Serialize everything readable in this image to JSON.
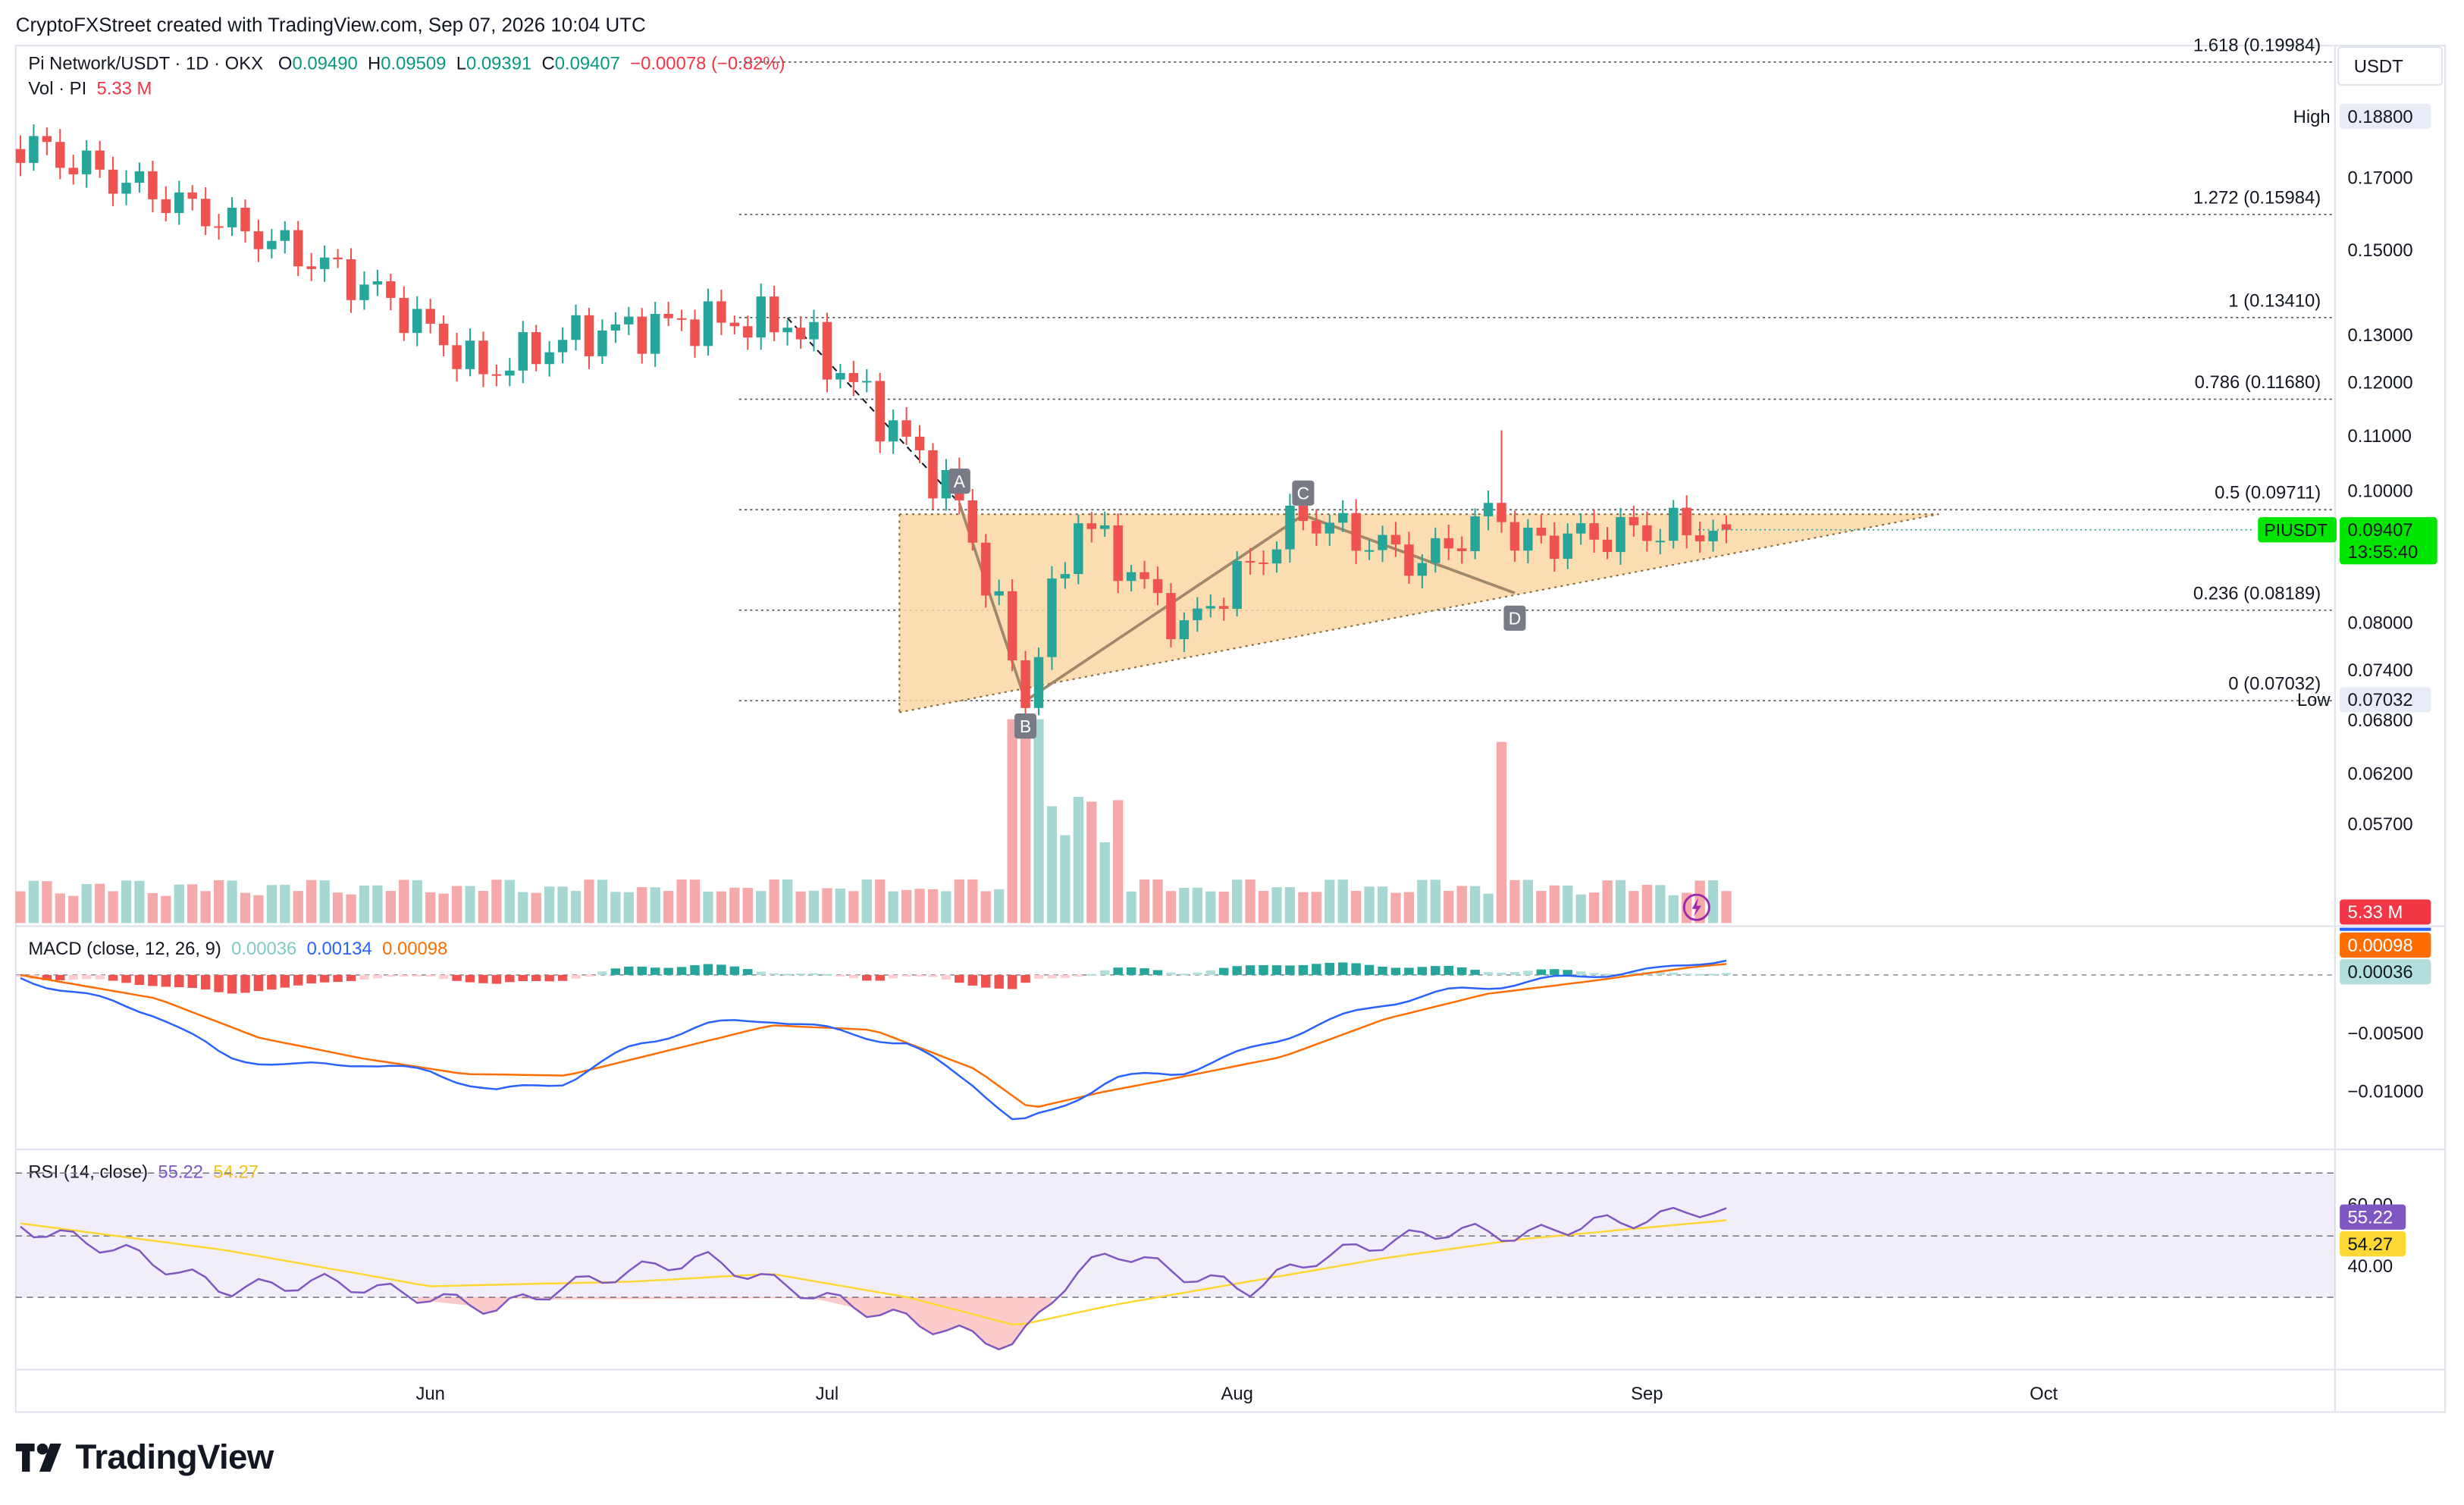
{
  "header": {
    "attribution": "CryptoFXStreet created with TradingView.com, Sep 07, 2026 10:04 UTC"
  },
  "symbol": {
    "title": "Pi Network/USDT · 1D · OKX",
    "open_label": "O",
    "open": "0.09490",
    "high_label": "H",
    "high": "0.09509",
    "low_label": "L",
    "low": "0.09391",
    "close_label": "C",
    "close": "0.09407",
    "change": "−0.00078 (−0.82%)",
    "vol_label": "Vol · PI",
    "vol_value": "5.33 M"
  },
  "price_axis": {
    "currency": "USDT",
    "ticks": [
      "0.17000",
      "0.15000",
      "0.13000",
      "0.12000",
      "0.11000",
      "0.10000",
      "0.08000",
      "0.07400",
      "0.06800",
      "0.06200",
      "0.05700"
    ],
    "high_label": "High",
    "high_value": "0.18800",
    "low_label": "Low",
    "low_value": "0.07032",
    "last_symbol": "PIUSDT",
    "last_price": "0.09407",
    "countdown": "13:55:40",
    "volume_badge": "5.33 M"
  },
  "fib_levels": [
    {
      "label": "1.618 (0.19984)",
      "value": 0.19984
    },
    {
      "label": "1.272 (0.15984)",
      "value": 0.15984
    },
    {
      "label": "1 (0.13410)",
      "value": 0.1341
    },
    {
      "label": "0.786 (0.11680)",
      "value": 0.1168
    },
    {
      "label": "0.5 (0.09711)",
      "value": 0.09711
    },
    {
      "label": "0.236 (0.08189)",
      "value": 0.08189
    },
    {
      "label": "0 (0.07032)",
      "value": 0.07032
    }
  ],
  "pattern_points": [
    {
      "label": "A",
      "date": "2026-07-11",
      "price": 0.0981
    },
    {
      "label": "B",
      "date": "2026-07-16",
      "price": 0.0703
    },
    {
      "label": "C",
      "date": "2026-08-06",
      "price": 0.0963
    },
    {
      "label": "D",
      "date": "2026-08-22",
      "price": 0.0845
    }
  ],
  "macd": {
    "label": "MACD (close, 12, 26, 9)",
    "histogram": "0.00036",
    "macd": "0.00134",
    "signal": "0.00098",
    "ticks": [
      "−0.00500",
      "−0.01000"
    ],
    "badge_signal": "0.00098",
    "badge_hist": "0.00036"
  },
  "rsi": {
    "label": "RSI (14, close)",
    "rsi": "55.22",
    "ma": "54.27",
    "ticks": [
      "60.00",
      "40.00"
    ],
    "badge_rsi": "55.22",
    "badge_ma": "54.27"
  },
  "time_axis": [
    "Jun",
    "Jul",
    "Aug",
    "Sep",
    "Oct"
  ],
  "brand": {
    "name": "TradingView"
  },
  "colors": {
    "up": "#26a69a",
    "down": "#ef5350",
    "macd": "#2962ff",
    "signal": "#ff6d00",
    "rsi": "#7e57c2",
    "rsi_ma": "#fdd835",
    "triangle": "#fbd7a3"
  },
  "chart_data": {
    "type": "candlestick",
    "title": "Pi Network/USDT · 1D · OKX",
    "x_range": [
      "2026-05-01",
      "2026-09-07"
    ],
    "y_range": [
      0.055,
      0.2
    ],
    "ohlc_anchors": [
      {
        "date": "2026-05-01",
        "close": 0.18
      },
      {
        "date": "2026-05-15",
        "close": 0.16
      },
      {
        "date": "2026-05-28",
        "close": 0.14
      },
      {
        "date": "2026-06-05",
        "close": 0.122
      },
      {
        "date": "2026-06-12",
        "close": 0.13
      },
      {
        "date": "2026-06-20",
        "close": 0.133
      },
      {
        "date": "2026-06-28",
        "close": 0.133
      },
      {
        "date": "2026-07-05",
        "close": 0.114
      },
      {
        "date": "2026-07-11",
        "close": 0.098
      },
      {
        "date": "2026-07-16",
        "close": 0.0703
      },
      {
        "date": "2026-07-20",
        "close": 0.096
      },
      {
        "date": "2026-07-28",
        "close": 0.079
      },
      {
        "date": "2026-08-06",
        "close": 0.0963
      },
      {
        "date": "2026-08-15",
        "close": 0.089
      },
      {
        "date": "2026-08-21",
        "close": 0.0975
      },
      {
        "date": "2026-08-22",
        "close": 0.092
      },
      {
        "date": "2026-09-01",
        "close": 0.094
      },
      {
        "date": "2026-09-07",
        "open": 0.0949,
        "high": 0.09509,
        "low": 0.09391,
        "close": 0.09407
      }
    ],
    "spike_high": {
      "date": "2026-08-21",
      "high": 0.111
    },
    "period_high": 0.188,
    "period_low": 0.07032,
    "last_volume_millions": 5.33
  }
}
